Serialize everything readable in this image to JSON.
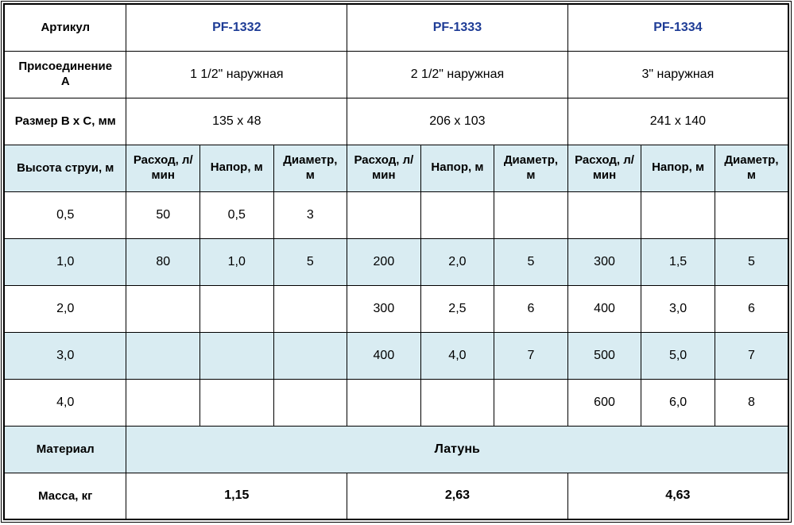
{
  "colors": {
    "article_blue": "#1e3c96",
    "stripe_blue": "#d9ecf2",
    "border_black": "#000000"
  },
  "table": {
    "row_article": {
      "label": "Артикул",
      "values": [
        "PF-1332",
        "PF-1333",
        "PF-1334"
      ]
    },
    "row_connection": {
      "label": "Присоединение А",
      "values": [
        "1 1/2\" наружная",
        "2 1/2\" наружная",
        "3\" наружная"
      ]
    },
    "row_size": {
      "label": "Размер B x C, мм",
      "values": [
        "135 x 48",
        "206 x 103",
        "241 x 140"
      ]
    },
    "header": {
      "label": "Высота струи, м",
      "columns": [
        "Расход, л/мин",
        "Напор, м",
        "Диаметр, м",
        "Расход, л/мин",
        "Напор, м",
        "Диаметр, м",
        "Расход, л/мин",
        "Напор, м",
        "Диаметр, м"
      ]
    },
    "data_rows": [
      {
        "height": "0,5",
        "values": [
          "50",
          "0,5",
          "3",
          "",
          "",
          "",
          "",
          "",
          ""
        ]
      },
      {
        "height": "1,0",
        "values": [
          "80",
          "1,0",
          "5",
          "200",
          "2,0",
          "5",
          "300",
          "1,5",
          "5"
        ]
      },
      {
        "height": "2,0",
        "values": [
          "",
          "",
          "",
          "300",
          "2,5",
          "6",
          "400",
          "3,0",
          "6"
        ]
      },
      {
        "height": "3,0",
        "values": [
          "",
          "",
          "",
          "400",
          "4,0",
          "7",
          "500",
          "5,0",
          "7"
        ]
      },
      {
        "height": "4,0",
        "values": [
          "",
          "",
          "",
          "",
          "",
          "",
          "600",
          "6,0",
          "8"
        ]
      }
    ],
    "row_material": {
      "label": "Материал",
      "value": "Латунь"
    },
    "row_mass": {
      "label": "Масса, кг",
      "values": [
        "1,15",
        "2,63",
        "4,63"
      ]
    }
  }
}
